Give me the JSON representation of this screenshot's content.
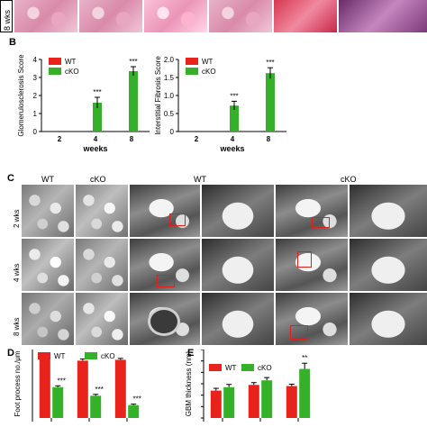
{
  "panel_a": {
    "row_label": "8 wks"
  },
  "panel_b": {
    "letter": "B",
    "chart_data": [
      {
        "type": "bar",
        "ylabel": "Glomerulosclerosis Score",
        "xlabel": "weeks",
        "categories": [
          "2",
          "4",
          "8"
        ],
        "series": [
          {
            "name": "WT",
            "values": [
              0,
              0,
              0
            ]
          },
          {
            "name": "cKO",
            "values": [
              0,
              1.6,
              3.35
            ]
          }
        ],
        "errors": [
          0,
          0.3,
          0.25
        ],
        "significance": [
          "",
          "***",
          "***"
        ],
        "ylim": [
          0,
          4
        ],
        "yticks": [
          "0",
          "1",
          "2",
          "3",
          "4"
        ],
        "colors": {
          "WT": "#e8231c",
          "cKO": "#35b029"
        }
      },
      {
        "type": "bar",
        "ylabel": "Interstitial Fibrosis Score",
        "xlabel": "weeks",
        "categories": [
          "2",
          "4",
          "8"
        ],
        "series": [
          {
            "name": "WT",
            "values": [
              0,
              0,
              0
            ]
          },
          {
            "name": "cKO",
            "values": [
              0,
              0.72,
              1.62
            ]
          }
        ],
        "errors": [
          0,
          0.12,
          0.15
        ],
        "significance": [
          "",
          "***",
          "***"
        ],
        "ylim": [
          0,
          2
        ],
        "yticks": [
          "0",
          "0.5",
          "1.0",
          "1.5",
          "2.0"
        ],
        "colors": {
          "WT": "#e8231c",
          "cKO": "#35b029"
        }
      }
    ]
  },
  "panel_c": {
    "letter": "C",
    "col_labels": [
      "WT",
      "cKO",
      "WT",
      "cKO"
    ],
    "row_labels": [
      "2 wks",
      "4 wks",
      "8 wks"
    ]
  },
  "panel_d": {
    "letter": "D",
    "chart_data": {
      "type": "bar",
      "ylabel": "Foot process no./μm",
      "categories": [
        "",
        "",
        ""
      ],
      "series": [
        {
          "name": "WT",
          "values": [
            3.55,
            3.35,
            3.4
          ]
        },
        {
          "name": "cKO",
          "values": [
            1.8,
            1.3,
            0.75
          ]
        }
      ],
      "errors_wt": [
        0.08,
        0.1,
        0.08
      ],
      "errors_cko": [
        0.08,
        0.08,
        0.06
      ],
      "significance": [
        "***",
        "***",
        "***"
      ],
      "ylim": [
        0,
        4
      ],
      "colors": {
        "WT": "#e8231c",
        "cKO": "#35b029"
      }
    }
  },
  "panel_e": {
    "letter": "E",
    "chart_data": {
      "type": "bar",
      "ylabel": "GBM thickness (nm)",
      "categories": [
        "",
        "",
        ""
      ],
      "series": [
        {
          "name": "WT",
          "values": [
            120,
            145,
            140
          ]
        },
        {
          "name": "cKO",
          "values": [
            135,
            165,
            215
          ]
        }
      ],
      "errors_wt": [
        10,
        10,
        8
      ],
      "errors_cko": [
        12,
        12,
        25
      ],
      "significance": [
        "",
        "",
        "**"
      ],
      "ylim": [
        0,
        300
      ],
      "yticks": [
        "0",
        "50",
        "100",
        "150",
        "200",
        "250",
        "300"
      ],
      "colors": {
        "WT": "#e8231c",
        "cKO": "#35b029"
      }
    }
  }
}
